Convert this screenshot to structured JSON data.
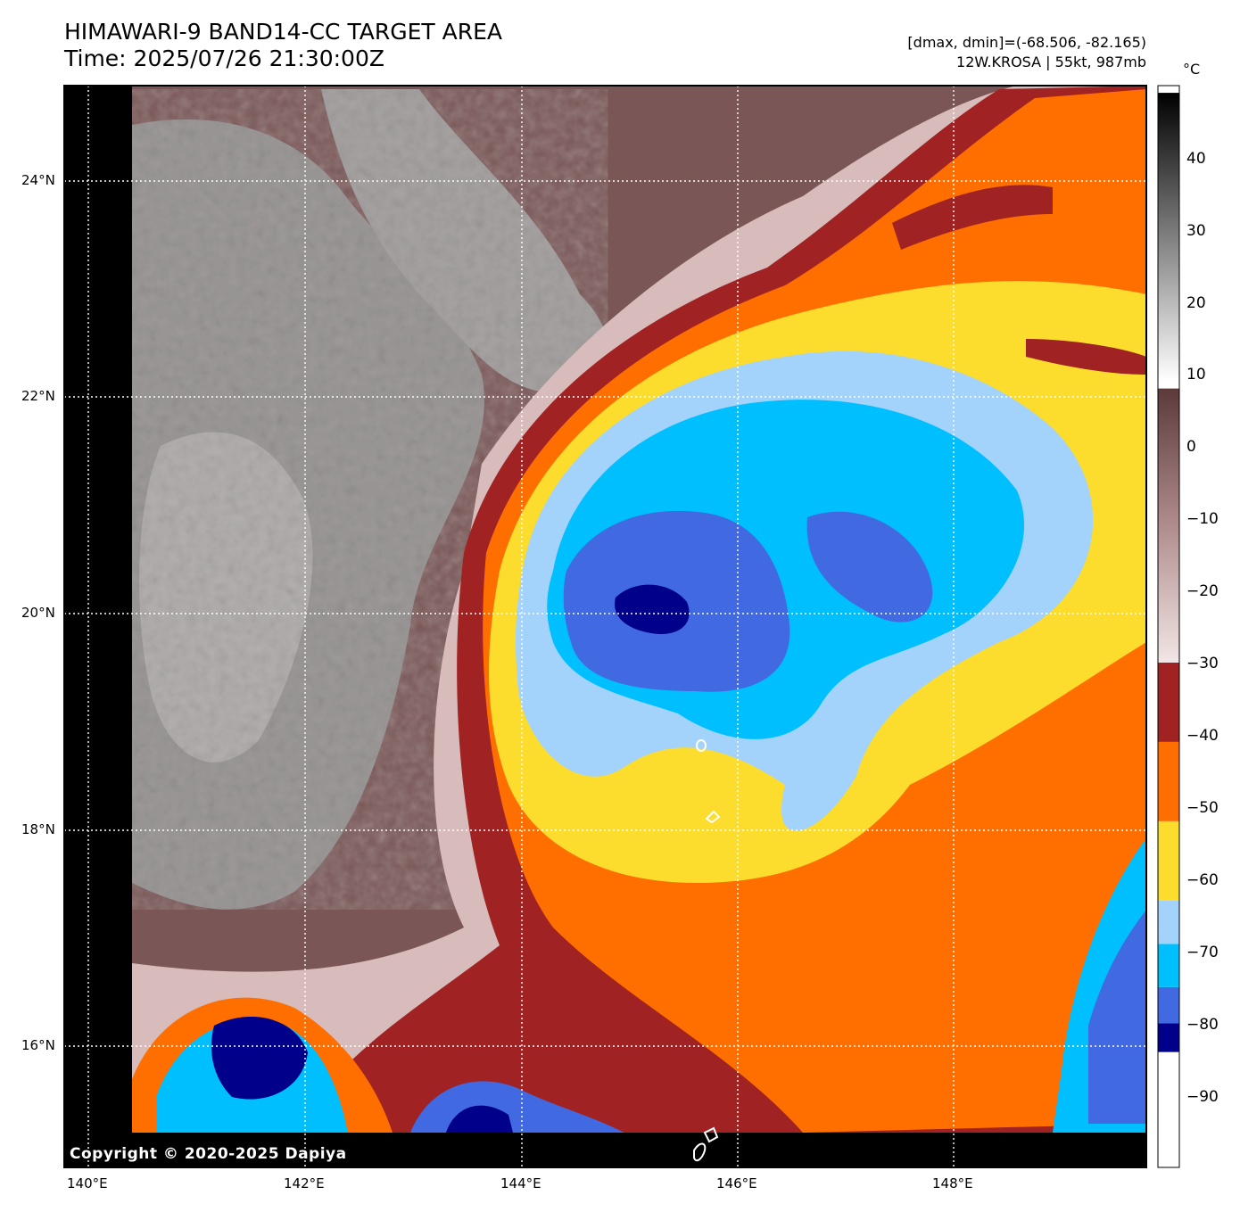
{
  "header": {
    "title_line1": "HIMAWARI-9 BAND14-CC TARGET AREA",
    "title_line2": "Time: 2025/07/26 21:30:00Z",
    "info_line1": "[dmax, dmin]=(-68.506, -82.165)",
    "info_line2": "12W.KROSA | 55kt, 987mb"
  },
  "map": {
    "lon_ticks": [
      "140°E",
      "142°E",
      "144°E",
      "146°E",
      "148°E"
    ],
    "lat_ticks": [
      "24°N",
      "22°N",
      "20°N",
      "18°N",
      "16°N"
    ],
    "copyright": "Copyright © 2020-2025 Dapiya"
  },
  "colorbar": {
    "unit": "°C",
    "ticks": [
      "40",
      "30",
      "20",
      "10",
      "0",
      "−10",
      "−20",
      "−30",
      "−40",
      "−50",
      "−60",
      "−70",
      "−80",
      "−90"
    ],
    "bands": [
      {
        "from": -100,
        "to": -84,
        "color": "#ffffff"
      },
      {
        "from": -84,
        "to": -80,
        "color": "#00008b"
      },
      {
        "from": -80,
        "to": -75,
        "color": "#4169e1"
      },
      {
        "from": -75,
        "to": -69,
        "color": "#00bfff"
      },
      {
        "from": -69,
        "to": -63,
        "color": "#a3d3fb"
      },
      {
        "from": -63,
        "to": -52,
        "color": "#fcdc2c"
      },
      {
        "from": -52,
        "to": -41,
        "color": "#ff6f00"
      },
      {
        "from": -41,
        "to": -30,
        "color": "#a02222"
      }
    ],
    "gradient_gray": {
      "from": -30,
      "to": 8,
      "colors": [
        "#f2e6e6",
        "#5c3a3a"
      ]
    },
    "gradient_bw": {
      "from": 9,
      "to": 49,
      "colors": [
        "#ffffff",
        "#000000"
      ]
    }
  }
}
